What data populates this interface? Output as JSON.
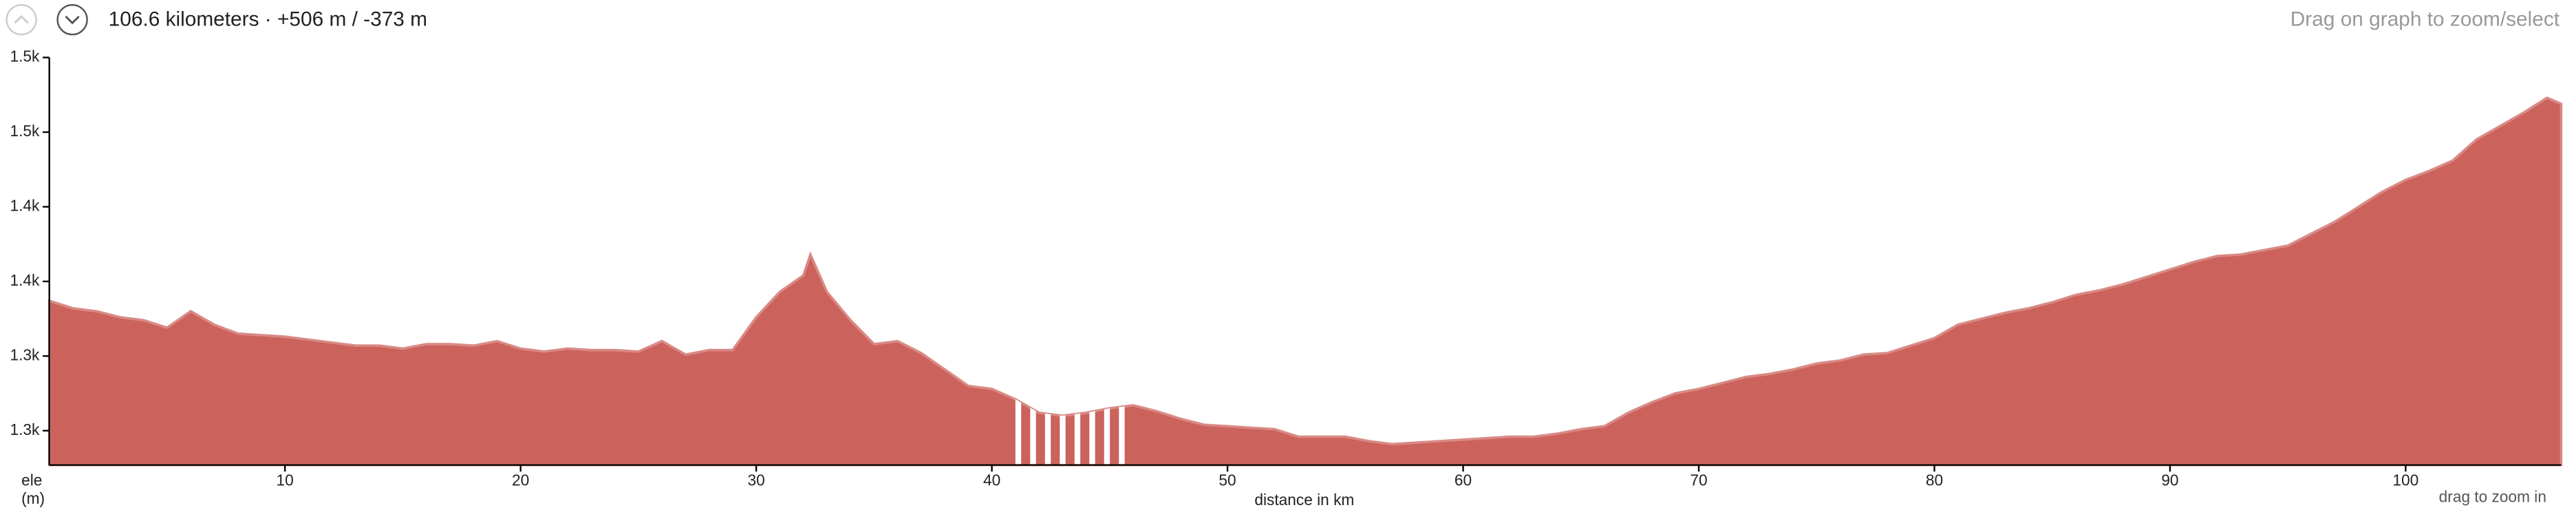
{
  "header": {
    "summary": "106.6 kilometers · +506 m / -373 m",
    "hint": "Drag on graph to zoom/select"
  },
  "chart_data": {
    "type": "area",
    "x_label": "distance in km",
    "y_label": [
      "ele",
      "(m)"
    ],
    "zoom_hint": "drag to zoom in",
    "color": "#cc625c",
    "x": [
      0,
      1,
      2,
      3,
      4,
      5,
      6,
      7,
      8,
      9,
      10,
      11,
      12,
      13,
      14,
      15,
      16,
      17,
      18,
      19,
      20,
      21,
      22,
      23,
      24,
      25,
      26,
      27,
      28,
      29,
      30,
      31,
      32,
      32.3,
      33,
      34,
      35,
      36,
      37,
      38,
      39,
      40,
      41,
      42,
      43,
      44,
      45,
      46,
      47,
      48,
      49,
      50,
      51,
      52,
      53,
      54,
      55,
      56,
      57,
      58,
      59,
      60,
      61,
      62,
      63,
      64,
      65,
      66,
      67,
      68,
      69,
      70,
      71,
      72,
      73,
      74,
      75,
      76,
      77,
      78,
      79,
      80,
      81,
      82,
      83,
      84,
      85,
      86,
      87,
      88,
      89,
      90,
      91,
      92,
      93,
      94,
      95,
      96,
      97,
      98,
      99,
      100,
      101,
      102,
      103,
      104,
      105,
      106,
      106.6
    ],
    "values": [
      1337,
      1332,
      1330,
      1326,
      1324,
      1319,
      1330,
      1321,
      1315,
      1314,
      1313,
      1311,
      1309,
      1307,
      1307,
      1305,
      1308,
      1308,
      1307,
      1310,
      1305,
      1303,
      1305,
      1304,
      1304,
      1303,
      1310,
      1301,
      1304,
      1304,
      1326,
      1343,
      1354,
      1368,
      1343,
      1324,
      1308,
      1310,
      1302,
      1291,
      1280,
      1278,
      1271,
      1262,
      1260,
      1262,
      1265,
      1267,
      1263,
      1258,
      1254,
      1253,
      1252,
      1251,
      1246,
      1246,
      1246,
      1243,
      1241,
      1242,
      1243,
      1244,
      1245,
      1246,
      1246,
      1248,
      1251,
      1253,
      1262,
      1269,
      1275,
      1278,
      1282,
      1286,
      1288,
      1291,
      1295,
      1297,
      1301,
      1302,
      1307,
      1312,
      1321,
      1325,
      1329,
      1332,
      1336,
      1341,
      1344,
      1348,
      1353,
      1358,
      1363,
      1367,
      1368,
      1371,
      1374,
      1382,
      1390,
      1400,
      1410,
      1418,
      1424,
      1431,
      1445,
      1454,
      1463,
      1473,
      1469
    ],
    "highlight": [
      41,
      45.7
    ],
    "xlim": [
      0,
      106.6
    ],
    "xticks": [
      10,
      20,
      30,
      40,
      50,
      60,
      70,
      80,
      90,
      100
    ],
    "ylim": [
      1227,
      1500
    ],
    "yticks": [
      {
        "value": 1250,
        "label": "1.3k"
      },
      {
        "value": 1300,
        "label": "1.3k"
      },
      {
        "value": 1350,
        "label": "1.4k"
      },
      {
        "value": 1400,
        "label": "1.4k"
      },
      {
        "value": 1450,
        "label": "1.5k"
      },
      {
        "value": 1500,
        "label": "1.5k"
      }
    ]
  }
}
